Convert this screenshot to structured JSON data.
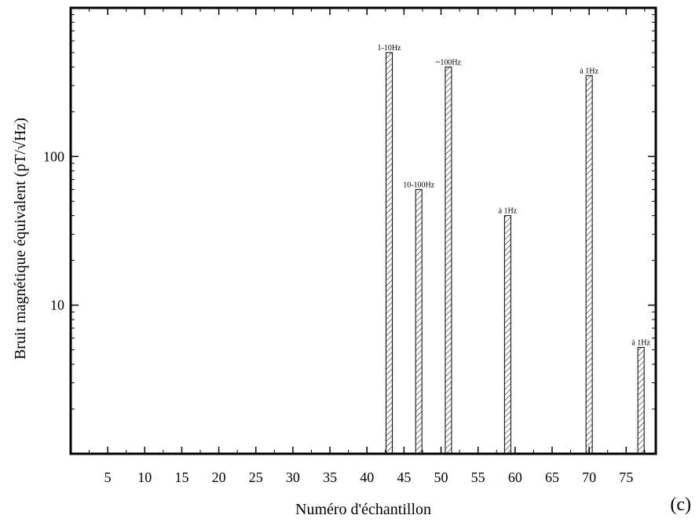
{
  "figure": {
    "panel_label": "(c)"
  },
  "chart_data": {
    "type": "bar",
    "xlabel": "Numéro d'échantillon",
    "ylabel": "Bruit magnétique équivalent (pT/√Hz)",
    "y_scale": "log",
    "xlim": [
      0,
      79
    ],
    "ylim": [
      1,
      1000
    ],
    "x_ticks": [
      5,
      10,
      15,
      20,
      25,
      30,
      35,
      40,
      45,
      50,
      55,
      60,
      65,
      70,
      75
    ],
    "y_tick_labels": [
      {
        "value": 10,
        "label": "10"
      },
      {
        "value": 100,
        "label": "100"
      }
    ],
    "bar_style": "hatched",
    "grid": false,
    "bars": [
      {
        "x": 43,
        "value": 500,
        "label": "1-10Hz"
      },
      {
        "x": 47,
        "value": 60,
        "label": "10-100Hz"
      },
      {
        "x": 51,
        "value": 400,
        "label": "~100Hz"
      },
      {
        "x": 59,
        "value": 40,
        "label": "à 1Hz"
      },
      {
        "x": 70,
        "value": 350,
        "label": "à 1Hz"
      },
      {
        "x": 77,
        "value": 5.2,
        "label": "à 1Hz"
      }
    ]
  }
}
